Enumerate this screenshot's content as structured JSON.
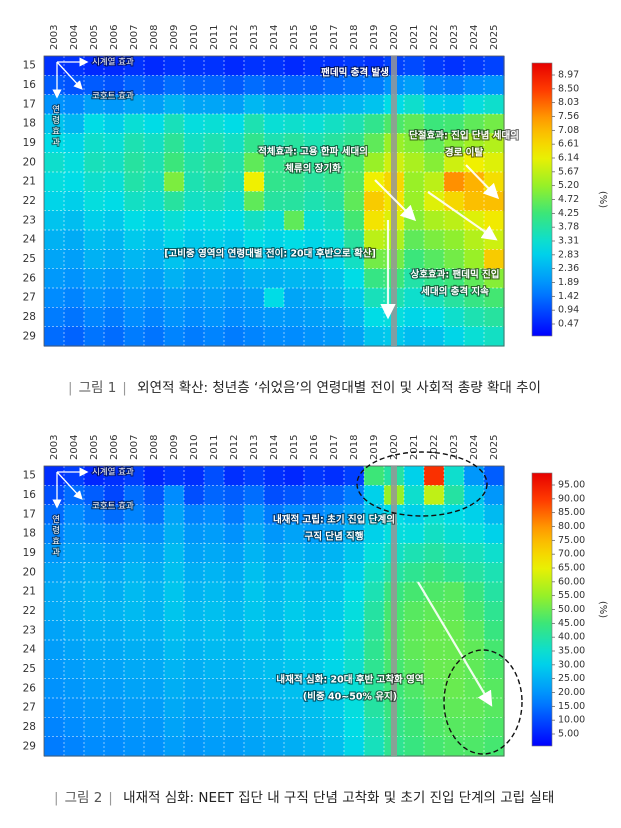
{
  "figures": [
    {
      "id": "fig1",
      "caption_label": "그림 1",
      "caption_text": "외연적 확산: 청년층 ‘쉬었음’의 연령대별 전이 및 사회적 총량 확대 추이",
      "chart_data": {
        "type": "heatmap",
        "x_categories": [
          "2003",
          "2004",
          "2005",
          "2006",
          "2007",
          "2008",
          "2009",
          "2010",
          "2011",
          "2012",
          "2013",
          "2014",
          "2015",
          "2016",
          "2017",
          "2018",
          "2019",
          "2020",
          "2021",
          "2022",
          "2023",
          "2024",
          "2025"
        ],
        "y_categories": [
          15,
          16,
          17,
          18,
          19,
          20,
          21,
          22,
          23,
          24,
          25,
          26,
          27,
          28,
          29
        ],
        "colorbar_unit": "(%)",
        "colorbar_ticks": [
          "0.47",
          "0.94",
          "1.42",
          "1.89",
          "2.36",
          "2.83",
          "3.31",
          "3.78",
          "4.25",
          "4.72",
          "5.20",
          "5.67",
          "6.14",
          "6.61",
          "7.08",
          "7.56",
          "8.03",
          "8.50",
          "8.97"
        ],
        "color_range": [
          0,
          9.4
        ],
        "highlight_year": "2020",
        "annotations": {
          "period_effect": "시계열 효과",
          "cohort_effect": "코호트 효과",
          "age_effect": "연령 효과",
          "pandemic_shock": "팬데믹 충격 발생",
          "accumulation_l1": "적체효과: 고용 한파 세대의",
          "accumulation_l2": "체류의 장기화",
          "disconnection_l1": "단절효과: 진입 단념 세대의",
          "disconnection_l2": "경로 이탈",
          "high_risk": "[고비중 영역의 연령대별 전이: 20대 후반으로 확산]",
          "interaction_l1": "상호효과: 팬데믹 진입",
          "interaction_l2": "세대의 충격 지속"
        },
        "values": [
          [
            0.6,
            0.6,
            0.5,
            0.5,
            0.6,
            0.5,
            0.6,
            0.6,
            0.6,
            0.5,
            0.6,
            0.6,
            0.5,
            0.6,
            0.6,
            0.7,
            0.6,
            0.8,
            0.9,
            0.7,
            0.6,
            0.7,
            0.8
          ],
          [
            1.1,
            1.0,
            1.1,
            1.0,
            1.2,
            1.1,
            1.3,
            1.2,
            1.2,
            1.1,
            1.3,
            1.2,
            1.2,
            1.2,
            1.3,
            1.4,
            1.5,
            1.8,
            2.0,
            1.6,
            1.5,
            1.7,
            1.8
          ],
          [
            1.8,
            1.7,
            2.0,
            1.9,
            2.1,
            2.0,
            2.3,
            2.1,
            2.1,
            2.0,
            2.4,
            2.2,
            2.1,
            2.2,
            2.3,
            2.4,
            2.6,
            3.0,
            3.3,
            2.8,
            2.7,
            3.1,
            3.3
          ],
          [
            2.6,
            2.4,
            3.0,
            2.8,
            3.2,
            3.0,
            3.5,
            3.1,
            3.2,
            3.0,
            3.6,
            3.2,
            3.3,
            3.2,
            3.4,
            3.6,
            4.0,
            4.4,
            4.6,
            4.2,
            4.3,
            4.6,
            4.8
          ],
          [
            3.0,
            2.9,
            3.3,
            3.2,
            3.6,
            3.4,
            3.9,
            3.4,
            3.6,
            3.4,
            4.0,
            3.6,
            3.8,
            3.6,
            3.8,
            4.0,
            4.6,
            5.2,
            5.0,
            4.6,
            5.0,
            5.3,
            5.5
          ],
          [
            3.3,
            3.1,
            3.5,
            3.4,
            3.8,
            3.6,
            4.2,
            3.7,
            3.9,
            3.7,
            4.6,
            4.0,
            4.1,
            3.9,
            4.1,
            4.4,
            5.2,
            5.8,
            5.4,
            5.0,
            5.8,
            6.2,
            6.0
          ],
          [
            3.1,
            3.0,
            3.3,
            3.2,
            3.7,
            3.5,
            4.9,
            3.6,
            3.8,
            3.6,
            6.2,
            4.0,
            4.0,
            3.8,
            4.0,
            4.5,
            6.2,
            6.6,
            5.2,
            5.6,
            7.6,
            7.2,
            6.5
          ],
          [
            2.9,
            2.8,
            3.1,
            3.0,
            3.4,
            3.3,
            3.8,
            3.4,
            3.5,
            3.3,
            4.6,
            3.8,
            3.8,
            3.6,
            3.8,
            4.6,
            6.8,
            6.4,
            5.2,
            6.0,
            6.6,
            7.0,
            7.0
          ],
          [
            2.6,
            2.5,
            2.8,
            2.7,
            3.0,
            2.9,
            3.2,
            3.0,
            3.1,
            3.0,
            3.4,
            3.2,
            4.6,
            3.2,
            3.4,
            4.3,
            6.4,
            6.0,
            5.0,
            5.4,
            5.6,
            6.0,
            6.3
          ],
          [
            2.3,
            2.2,
            2.5,
            2.4,
            2.7,
            2.6,
            2.9,
            2.7,
            2.8,
            2.7,
            3.0,
            2.9,
            3.0,
            2.9,
            3.1,
            3.8,
            5.6,
            5.4,
            4.6,
            4.9,
            5.1,
            5.5,
            5.8
          ],
          [
            2.1,
            2.0,
            2.3,
            2.2,
            2.4,
            2.3,
            2.6,
            2.4,
            2.5,
            2.4,
            2.7,
            2.6,
            2.7,
            2.7,
            2.9,
            3.4,
            4.8,
            4.8,
            4.2,
            4.5,
            4.8,
            5.2,
            6.8
          ],
          [
            1.9,
            1.8,
            2.0,
            1.9,
            2.1,
            2.0,
            2.3,
            2.1,
            2.2,
            2.1,
            2.3,
            2.3,
            2.4,
            2.4,
            2.6,
            3.0,
            4.1,
            4.2,
            3.7,
            4.0,
            4.2,
            4.6,
            5.0
          ],
          [
            1.7,
            1.6,
            1.8,
            1.7,
            1.9,
            1.8,
            2.0,
            1.9,
            2.0,
            1.9,
            2.0,
            3.0,
            2.1,
            2.2,
            2.4,
            2.7,
            3.5,
            3.6,
            3.3,
            3.5,
            3.8,
            4.1,
            4.3
          ],
          [
            1.5,
            1.4,
            1.6,
            1.5,
            1.7,
            1.6,
            1.8,
            1.7,
            1.8,
            1.7,
            1.8,
            1.9,
            1.9,
            2.0,
            2.1,
            2.4,
            3.0,
            3.1,
            2.9,
            3.0,
            3.3,
            3.6,
            3.8
          ],
          [
            1.3,
            1.2,
            1.4,
            1.3,
            1.5,
            1.4,
            1.6,
            1.5,
            1.6,
            1.5,
            1.6,
            1.7,
            1.7,
            1.8,
            1.9,
            2.1,
            2.6,
            2.7,
            2.5,
            2.6,
            2.9,
            3.2,
            3.4
          ]
        ]
      }
    },
    {
      "id": "fig2",
      "caption_label": "그림 2",
      "caption_text": "내재적 심화: NEET 집단 내 구직 단념 고착화 및 초기 진입 단계의 고립 실태",
      "chart_data": {
        "type": "heatmap",
        "x_categories": [
          "2003",
          "2004",
          "2005",
          "2006",
          "2007",
          "2008",
          "2009",
          "2010",
          "2011",
          "2012",
          "2013",
          "2014",
          "2015",
          "2016",
          "2017",
          "2018",
          "2019",
          "2020",
          "2021",
          "2022",
          "2023",
          "2024",
          "2025"
        ],
        "y_categories": [
          15,
          16,
          17,
          18,
          19,
          20,
          21,
          22,
          23,
          24,
          25,
          26,
          27,
          28,
          29
        ],
        "colorbar_unit": "(%)",
        "colorbar_ticks": [
          "5.00",
          "10.00",
          "15.00",
          "20.00",
          "25.00",
          "30.00",
          "35.00",
          "40.00",
          "45.00",
          "50.00",
          "55.00",
          "60.00",
          "65.00",
          "70.00",
          "75.00",
          "80.00",
          "85.00",
          "90.00",
          "95.00"
        ],
        "color_range": [
          0,
          100
        ],
        "highlight_year": "2020",
        "annotations": {
          "period_effect": "시계열 효과",
          "cohort_effect": "코호트 효과",
          "age_effect": "연령 효과",
          "isolation_l1": "내재적 고립: 초기 진입 단계의",
          "isolation_l2": "구직 단념 직행",
          "deepening_l1": "내재적 심화: 20대 후반 고착화 영역",
          "deepening_l2": "(비중 40~50% 유지)"
        },
        "values": [
          [
            6,
            8,
            5,
            6,
            8,
            5,
            7,
            6,
            10,
            6,
            8,
            6,
            5,
            7,
            6,
            8,
            45,
            40,
            30,
            92,
            35,
            20,
            12
          ],
          [
            10,
            14,
            12,
            9,
            14,
            11,
            18,
            10,
            13,
            12,
            14,
            10,
            11,
            12,
            13,
            16,
            30,
            55,
            35,
            60,
            40,
            28,
            20
          ],
          [
            14,
            18,
            16,
            14,
            17,
            15,
            22,
            17,
            18,
            16,
            20,
            16,
            18,
            17,
            19,
            22,
            28,
            32,
            30,
            34,
            32,
            30,
            26
          ],
          [
            17,
            20,
            19,
            18,
            20,
            19,
            24,
            20,
            21,
            19,
            23,
            20,
            22,
            21,
            22,
            25,
            30,
            33,
            33,
            36,
            34,
            33,
            30
          ],
          [
            20,
            22,
            22,
            21,
            23,
            22,
            26,
            22,
            23,
            22,
            25,
            23,
            25,
            24,
            25,
            28,
            33,
            36,
            38,
            40,
            38,
            37,
            35
          ],
          [
            22,
            23,
            24,
            23,
            25,
            24,
            27,
            24,
            25,
            24,
            27,
            25,
            27,
            26,
            27,
            30,
            36,
            40,
            42,
            44,
            42,
            40,
            38
          ],
          [
            23,
            24,
            25,
            24,
            26,
            25,
            28,
            25,
            26,
            25,
            28,
            26,
            28,
            27,
            28,
            32,
            38,
            44,
            46,
            47,
            48,
            44,
            40
          ],
          [
            23,
            24,
            25,
            25,
            26,
            25,
            28,
            26,
            27,
            26,
            28,
            27,
            29,
            28,
            29,
            33,
            40,
            46,
            48,
            49,
            49,
            46,
            42
          ],
          [
            22,
            23,
            24,
            24,
            25,
            25,
            27,
            26,
            27,
            26,
            28,
            27,
            29,
            28,
            30,
            34,
            41,
            47,
            49,
            50,
            50,
            48,
            44
          ],
          [
            21,
            22,
            23,
            23,
            24,
            24,
            26,
            25,
            26,
            26,
            27,
            27,
            29,
            29,
            31,
            35,
            42,
            47,
            49,
            50,
            50,
            49,
            46
          ],
          [
            20,
            21,
            22,
            22,
            23,
            23,
            25,
            24,
            25,
            25,
            26,
            27,
            28,
            29,
            31,
            35,
            42,
            46,
            48,
            50,
            50,
            49,
            47
          ],
          [
            19,
            20,
            21,
            21,
            22,
            22,
            24,
            23,
            24,
            24,
            25,
            26,
            27,
            28,
            30,
            34,
            41,
            45,
            47,
            49,
            50,
            49,
            48
          ],
          [
            18,
            19,
            20,
            20,
            21,
            21,
            23,
            22,
            23,
            23,
            24,
            25,
            26,
            27,
            29,
            33,
            40,
            44,
            46,
            48,
            49,
            49,
            48
          ],
          [
            17,
            18,
            19,
            19,
            20,
            20,
            22,
            21,
            22,
            22,
            23,
            24,
            25,
            26,
            28,
            32,
            38,
            43,
            45,
            47,
            48,
            48,
            47
          ],
          [
            16,
            17,
            18,
            18,
            19,
            19,
            21,
            20,
            21,
            21,
            22,
            23,
            24,
            25,
            27,
            31,
            37,
            42,
            44,
            46,
            47,
            47,
            46
          ]
        ]
      }
    }
  ]
}
